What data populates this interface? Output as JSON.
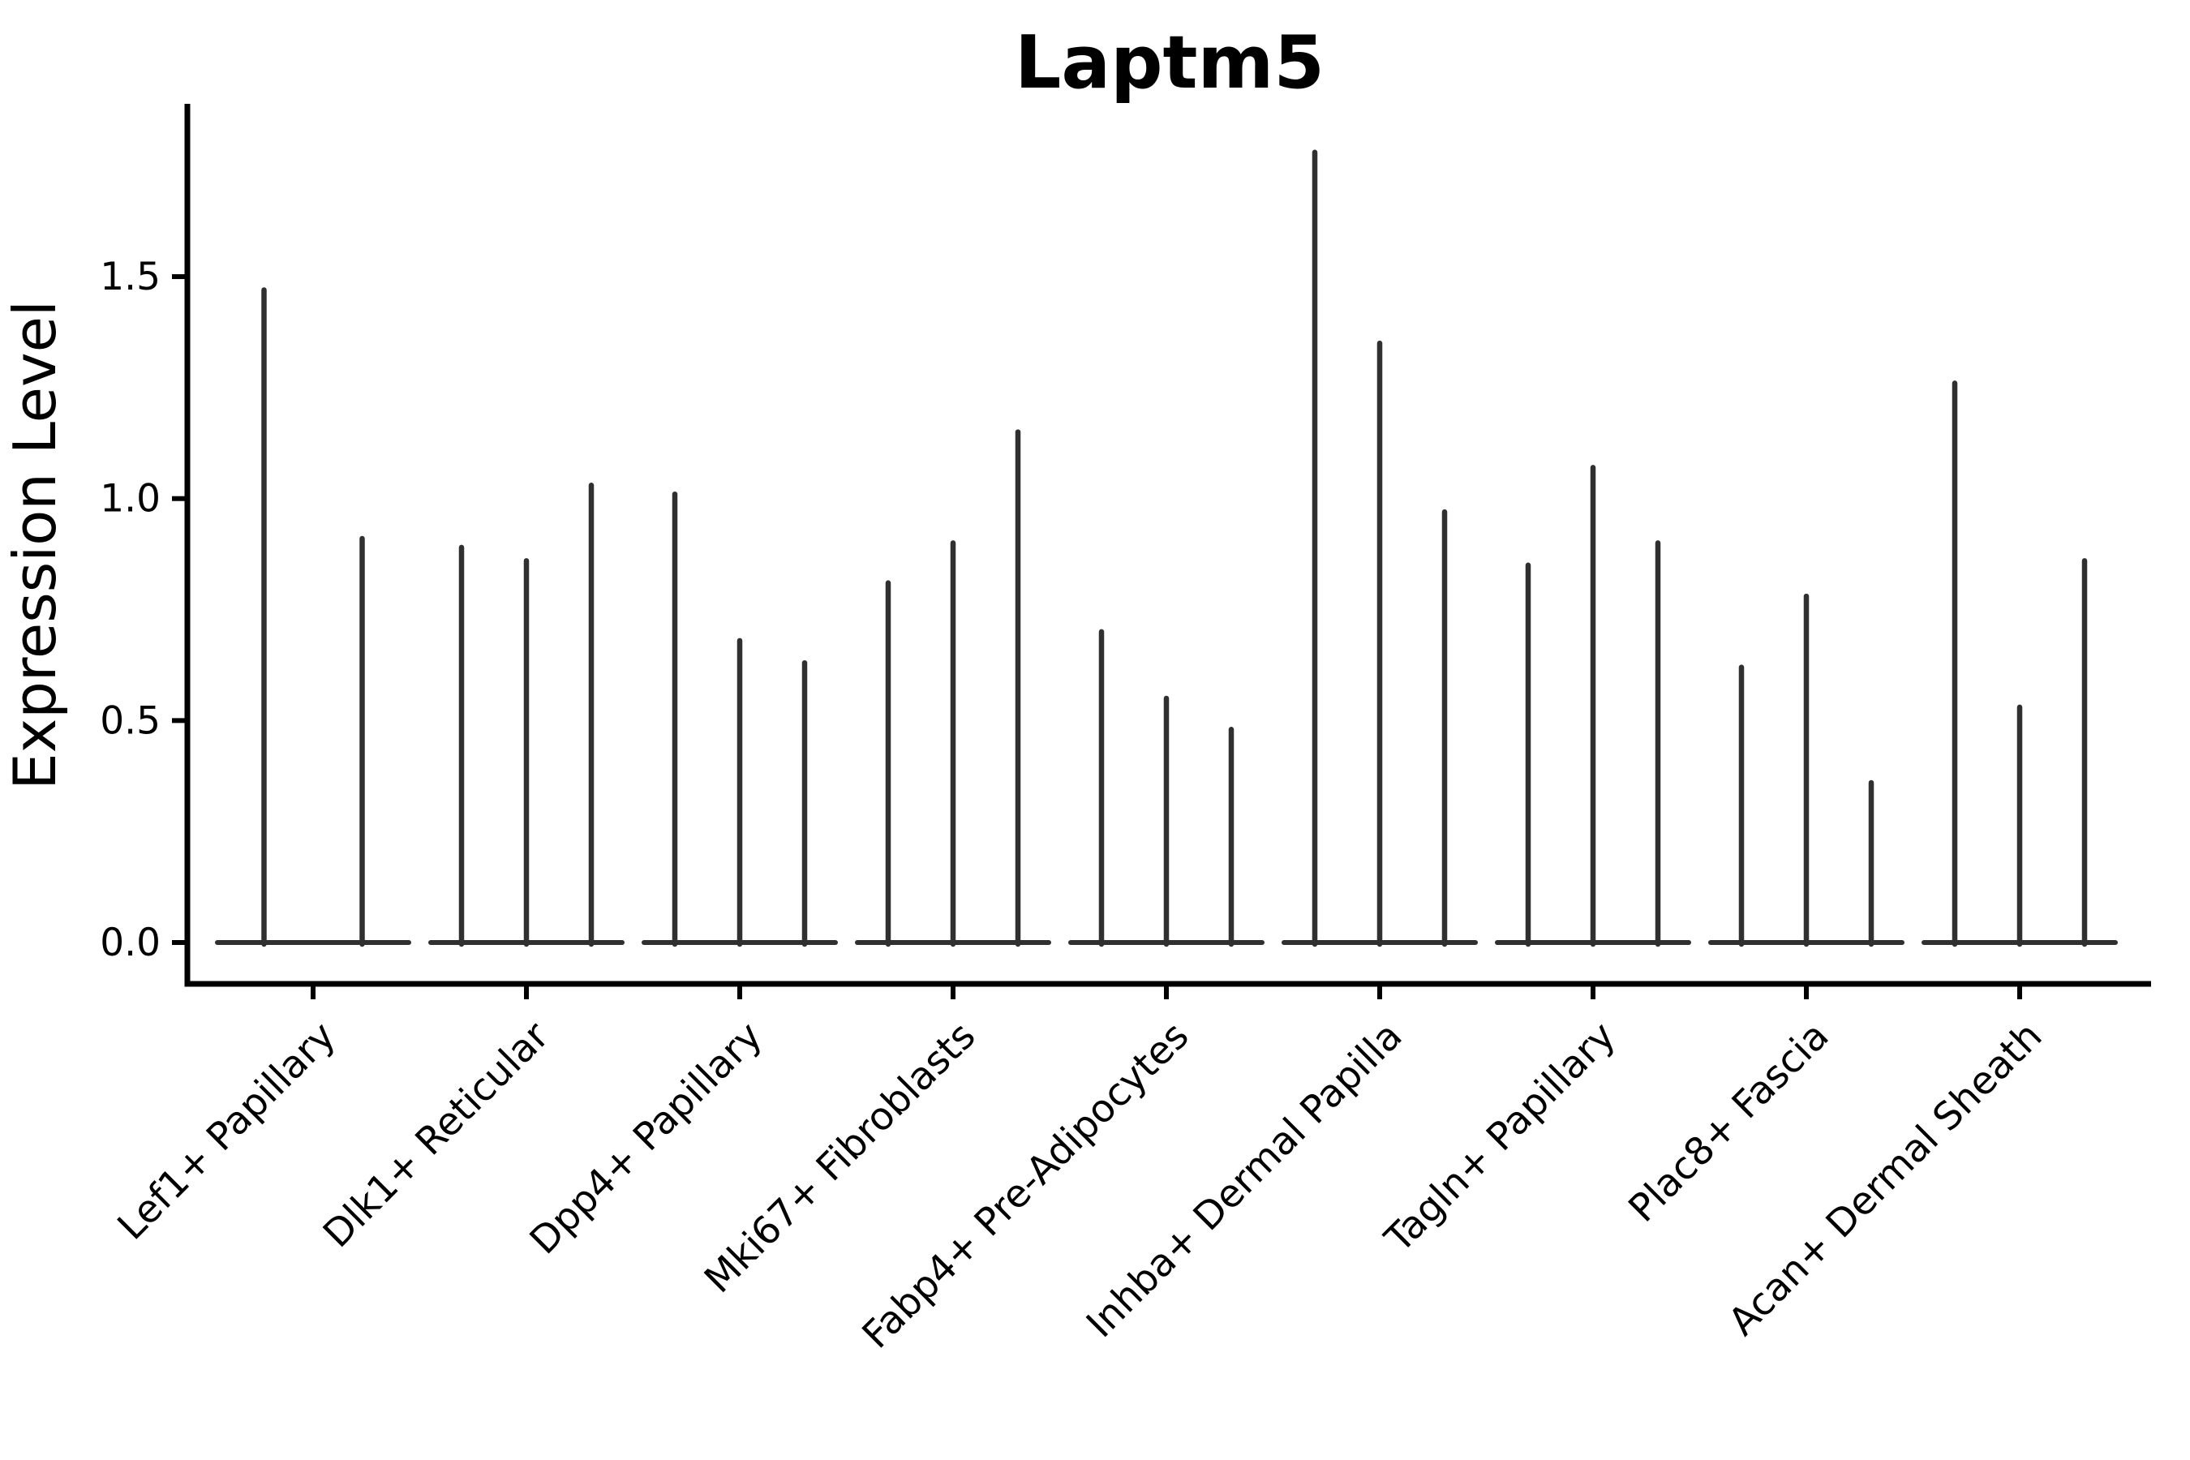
{
  "title": "Laptm5",
  "y_axis_label": "Expression Level",
  "chart_data": {
    "type": "violin",
    "title": "Laptm5",
    "xlabel": "",
    "ylabel": "Expression Level",
    "ylim": [
      -0.09,
      1.89
    ],
    "yticks": [
      0.0,
      0.5,
      1.0,
      1.5
    ],
    "ytick_labels": [
      "0.0",
      "0.5",
      "1.0",
      "1.5"
    ],
    "grid": false,
    "legend": "none",
    "violin_color": "#303030",
    "axis_color": "#000000",
    "background_color": "#ffffff",
    "categories": [
      "Lef1+ Papillary",
      "Dlk1+ Reticular",
      "Dpp4+ Papillary",
      "Mki67+ Fibroblasts",
      "Fabp4+ Pre-Adipocytes",
      "Inhba+ Dermal Papilla",
      "Tagln+ Papillary",
      "Plac8+ Fascia",
      "Acan+ Dermal Sheath"
    ],
    "groups": [
      {
        "category": "Lef1+ Papillary",
        "max_expression_per_violin": [
          1.47,
          0.91
        ]
      },
      {
        "category": "Dlk1+ Reticular",
        "max_expression_per_violin": [
          0.89,
          0.86,
          1.03
        ]
      },
      {
        "category": "Dpp4+ Papillary",
        "max_expression_per_violin": [
          1.01,
          0.68,
          0.63
        ]
      },
      {
        "category": "Mki67+ Fibroblasts",
        "max_expression_per_violin": [
          0.81,
          0.9,
          1.15
        ]
      },
      {
        "category": "Fabp4+ Pre-Adipocytes",
        "max_expression_per_violin": [
          0.7,
          0.55,
          0.48
        ]
      },
      {
        "category": "Inhba+ Dermal Papilla",
        "max_expression_per_violin": [
          1.78,
          1.35,
          0.97
        ]
      },
      {
        "category": "Tagln+ Papillary",
        "max_expression_per_violin": [
          0.85,
          1.07,
          0.9
        ]
      },
      {
        "category": "Plac8+ Fascia",
        "max_expression_per_violin": [
          0.62,
          0.78,
          0.36
        ]
      },
      {
        "category": "Acan+ Dermal Sheath",
        "max_expression_per_violin": [
          1.26,
          0.53,
          0.86
        ]
      }
    ]
  }
}
